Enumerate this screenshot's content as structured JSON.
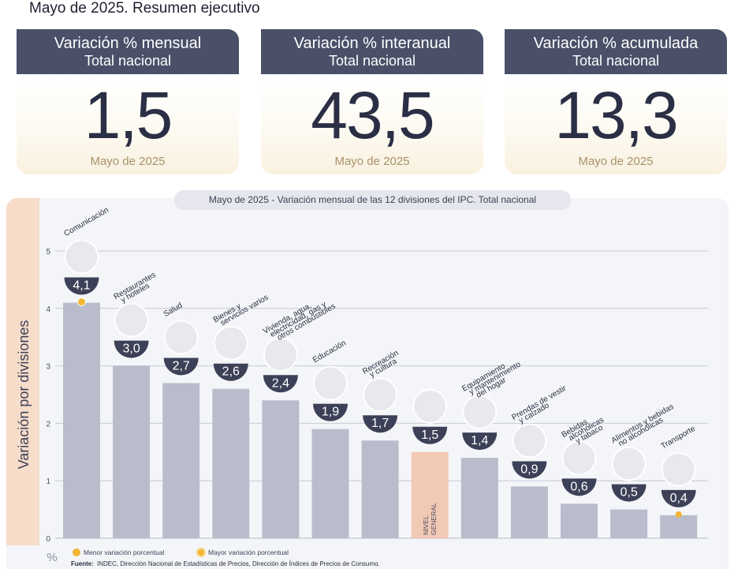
{
  "header": {
    "title": "Mayo de 2025. Resumen ejecutivo"
  },
  "cards": [
    {
      "title": "Variación % mensual",
      "subtitle": "Total nacional",
      "value": "1,5",
      "period": "Mayo de 2025"
    },
    {
      "title": "Variación % interanual",
      "subtitle": "Total nacional",
      "value": "43,5",
      "period": "Mayo de 2025"
    },
    {
      "title": "Variación % acumulada",
      "subtitle": "Total nacional",
      "value": "13,3",
      "period": "Mayo de 2025"
    }
  ],
  "chart_panel_title_prefix": "Mayo de 2025",
  "chart_panel_title_sep": " - ",
  "chart_panel_title_main": "Variación mensual de las 12 divisiones del IPC. Total nacional",
  "chart_data": {
    "type": "bar",
    "ylabel": "Variación por divisiones",
    "yunit": "%",
    "ylim": [
      0,
      5
    ],
    "yticks": [
      "0",
      "1",
      "2",
      "3",
      "4",
      "5"
    ],
    "grid": true,
    "categories": [
      [
        "Comunicación"
      ],
      [
        "Restaurantes",
        "y hoteles"
      ],
      [
        "Salud"
      ],
      [
        "Bienes y",
        "servicios varios"
      ],
      [
        "Vivienda, agua,",
        "electricidad, gas y",
        "otros combustibles"
      ],
      [
        "Educación"
      ],
      [
        "Recreación",
        "y cultura"
      ],
      [
        "NIVEL",
        "GENERAL"
      ],
      [
        "Equipamiento",
        "y mantenimiento",
        "del hogar"
      ],
      [
        "Prendas de vestir",
        "y calzado"
      ],
      [
        "Bebidas",
        "alcohólicas",
        "y tabaco"
      ],
      [
        "Alimentos y bebidas",
        "no alcohólicas"
      ],
      [
        "Transporte"
      ]
    ],
    "values": [
      4.1,
      3.0,
      2.7,
      2.6,
      2.4,
      1.9,
      1.7,
      1.5,
      1.4,
      0.9,
      0.6,
      0.5,
      0.4
    ],
    "value_labels": [
      "4,1",
      "3,0",
      "2,7",
      "2,6",
      "2,4",
      "1,9",
      "1,7",
      "1,5",
      "1,4",
      "0,9",
      "0,6",
      "0,5",
      "0,4"
    ],
    "icons": [
      "mobile-phone-icon",
      "dining-icon",
      "first-aid-icon",
      "comb-and-brush-icon",
      "light-bulb-icon",
      "book-icon",
      "beach-umbrella-icon",
      "shopping-basket-icon",
      "air-conditioner-icon",
      "t-shirt-icon",
      "bottles-icon",
      "food-icon",
      "sube-card-icon"
    ],
    "colors": {
      "bar": "#b9bdcb",
      "general_bar": "#f2c9b5",
      "label_bg": "#3d4157",
      "marker_min": "#f2b534",
      "marker_max": "#f2b534"
    },
    "highlight": {
      "max_index": 0,
      "min_index": 12,
      "general_index": 7
    },
    "legend": [
      {
        "label": "Menor variación porcentual",
        "color": "#f2b534"
      },
      {
        "label": "Mayor variación porcentual",
        "color": "#f2b534"
      }
    ],
    "legend_position": "bottom-left"
  },
  "source": {
    "label": "Fuente:",
    "text": "INDEC, Dirección Nacional de Estadísticas de Precios, Dirección de Índices de Precios de Consumo."
  }
}
